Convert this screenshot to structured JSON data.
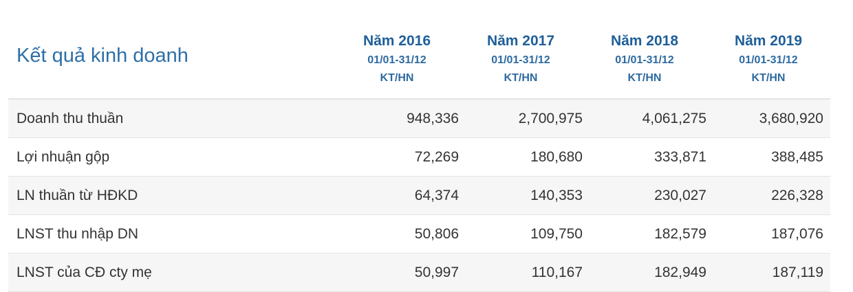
{
  "section": {
    "title": "Kết quả kinh doanh"
  },
  "periods": [
    {
      "year": "Năm 2016",
      "range": "01/01-31/12",
      "type": "KT/HN"
    },
    {
      "year": "Năm 2017",
      "range": "01/01-31/12",
      "type": "KT/HN"
    },
    {
      "year": "Năm 2018",
      "range": "01/01-31/12",
      "type": "KT/HN"
    },
    {
      "year": "Năm 2019",
      "range": "01/01-31/12",
      "type": "KT/HN"
    }
  ],
  "rows": [
    {
      "label": "Doanh thu thuần",
      "values": [
        "948,336",
        "2,700,975",
        "4,061,275",
        "3,680,920"
      ]
    },
    {
      "label": "Lợi nhuận gộp",
      "values": [
        "72,269",
        "180,680",
        "333,871",
        "388,485"
      ]
    },
    {
      "label": "LN thuần từ HĐKD",
      "values": [
        "64,374",
        "140,353",
        "230,027",
        "226,328"
      ]
    },
    {
      "label": "LNST thu nhập DN",
      "values": [
        "50,806",
        "109,750",
        "182,579",
        "187,076"
      ]
    },
    {
      "label": "LNST của CĐ cty mẹ",
      "values": [
        "50,997",
        "110,167",
        "182,949",
        "187,119"
      ]
    }
  ]
}
